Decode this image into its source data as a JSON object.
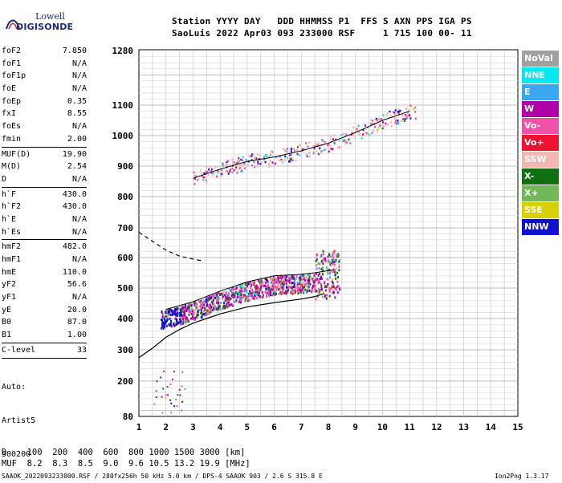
{
  "logo": {
    "lowell": "Lowell",
    "digisonde": "DIGISONDE"
  },
  "header": {
    "line1": "Station YYYY DAY   DDD HHMMSS P1  FFS S AXN PPS IGA PS",
    "line2": "SaoLuis 2022 Apr03 093 233000 RSF     1 715 100 00- 11"
  },
  "params_group1": [
    {
      "name": "foF2",
      "value": "7.850"
    },
    {
      "name": "foF1",
      "value": "N/A"
    },
    {
      "name": "foF1p",
      "value": "N/A"
    },
    {
      "name": "foE",
      "value": "N/A"
    },
    {
      "name": "foEp",
      "value": "0.35"
    },
    {
      "name": "fxI",
      "value": "8.55"
    },
    {
      "name": "foEs",
      "value": "N/A"
    },
    {
      "name": "fmin",
      "value": "2.00"
    }
  ],
  "params_group2": [
    {
      "name": "MUF(D)",
      "value": "19.90"
    },
    {
      "name": "M(D)",
      "value": "2.54"
    },
    {
      "name": "D",
      "value": "N/A"
    }
  ],
  "params_group3": [
    {
      "name": "h`F",
      "value": "430.0"
    },
    {
      "name": "h`F2",
      "value": "430.0"
    },
    {
      "name": "h`E",
      "value": "N/A"
    },
    {
      "name": "h`Es",
      "value": "N/A"
    }
  ],
  "params_group4": [
    {
      "name": "hmF2",
      "value": "482.0"
    },
    {
      "name": "hmF1",
      "value": "N/A"
    },
    {
      "name": "hmE",
      "value": "110.0"
    },
    {
      "name": "yF2",
      "value": "56.6"
    },
    {
      "name": "yF1",
      "value": "N/A"
    },
    {
      "name": "yE",
      "value": "20.0"
    },
    {
      "name": "B0",
      "value": "87.0"
    },
    {
      "name": "B1",
      "value": "1.00"
    }
  ],
  "params_group5": [
    {
      "name": "C-level",
      "value": "33"
    }
  ],
  "autoscaling": {
    "line1": "Auto:",
    "line2": "Artist5",
    "line3": "500200"
  },
  "legend": [
    {
      "label": "NoVal",
      "color": "#a0a0a0"
    },
    {
      "label": "NNE",
      "color": "#00e8f0"
    },
    {
      "label": "E",
      "color": "#3aa8f0"
    },
    {
      "label": "W",
      "color": "#b000a8"
    },
    {
      "label": "Vo-",
      "color": "#f050a8"
    },
    {
      "label": "Vo+",
      "color": "#f01030"
    },
    {
      "label": "SSW",
      "color": "#f0b8b0"
    },
    {
      "label": "X-",
      "color": "#107010"
    },
    {
      "label": "X+",
      "color": "#70b858"
    },
    {
      "label": "SSE",
      "color": "#d8d000"
    },
    {
      "label": "NNW",
      "color": "#1010d0"
    }
  ],
  "muf_table": {
    "d_row": "D    100  200  400  600  800 1000 1500 3000 [km]",
    "muf_row": "MUF  8.2  8.3  8.5  9.0  9.6 10.5 13.2 19.9 [MHz]"
  },
  "footer": {
    "left": "SAAOK_2022093233000.RSF / 280fx256h 50 kHz 5.0 km / DPS-4 SAAOK 903 / 2.6 S 315.8 E",
    "right": "Ion2Png 1.3.17"
  },
  "chart_data": {
    "type": "scatter",
    "xlabel": "",
    "ylabel": "",
    "xlim": [
      1,
      15
    ],
    "ylim": [
      80,
      1280
    ],
    "x_ticks": [
      1,
      2,
      3,
      4,
      5,
      6,
      7,
      8,
      9,
      10,
      11,
      12,
      13,
      14,
      15
    ],
    "y_ticks": [
      80,
      200,
      300,
      400,
      500,
      600,
      700,
      800,
      900,
      1000,
      1100,
      1280
    ],
    "grid": true,
    "traces": [
      {
        "name": "F2 trace",
        "x": [
          2.0,
          3.0,
          4.0,
          5.0,
          6.0,
          7.0,
          7.5,
          8.2
        ],
        "y": [
          430,
          455,
          490,
          520,
          540,
          545,
          550,
          560
        ]
      },
      {
        "name": "Multihop trace",
        "x": [
          3.0,
          4.0,
          5.0,
          6.0,
          7.0,
          8.0,
          9.0,
          10.0,
          11.0
        ],
        "y": [
          860,
          890,
          915,
          930,
          950,
          975,
          1010,
          1050,
          1080
        ]
      }
    ],
    "profile_curve": {
      "x": [
        1.0,
        1.5,
        2.0,
        2.5,
        3.0,
        3.5,
        4.0,
        5.0,
        6.0,
        7.0,
        7.5,
        7.85
      ],
      "y": [
        275,
        305,
        340,
        365,
        385,
        400,
        415,
        438,
        452,
        464,
        472,
        482
      ]
    },
    "profile_dashed": {
      "x": [
        1.0,
        1.5,
        2.0,
        2.5,
        3.0,
        3.3
      ],
      "y": [
        685,
        655,
        625,
        605,
        595,
        590
      ]
    }
  }
}
